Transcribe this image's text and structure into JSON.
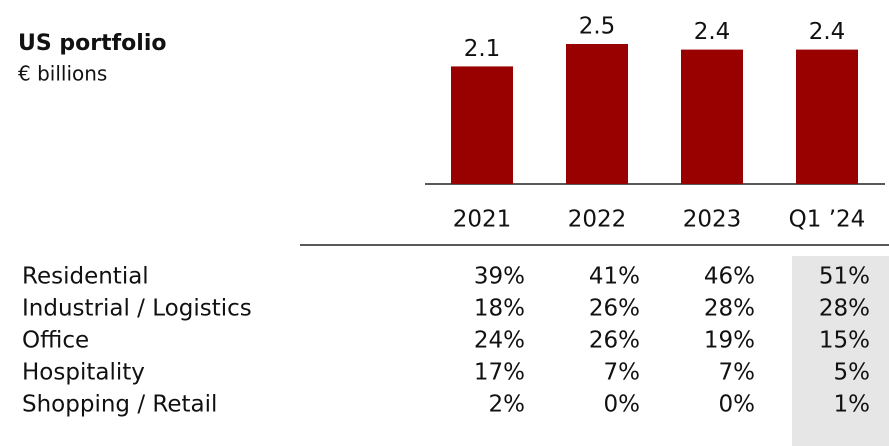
{
  "chart_data": {
    "type": "bar",
    "title": "US portfolio",
    "subtitle": "€ billions",
    "categories": [
      "2021",
      "2022",
      "2023",
      "Q1 ’24"
    ],
    "values": [
      2.1,
      2.5,
      2.4,
      2.4
    ],
    "color": "#990000"
  },
  "table": {
    "rows": [
      [
        "Residential",
        "39%",
        "41%",
        "46%",
        "51%"
      ],
      [
        "Industrial / Logistics",
        "18%",
        "26%",
        "28%",
        "28%"
      ],
      [
        "Office",
        "24%",
        "26%",
        "19%",
        "15%"
      ],
      [
        "Hospitality",
        "17%",
        "7%",
        "7%",
        "5%"
      ],
      [
        "Shopping / Retail",
        "2%",
        "0%",
        "0%",
        "1%"
      ]
    ]
  }
}
